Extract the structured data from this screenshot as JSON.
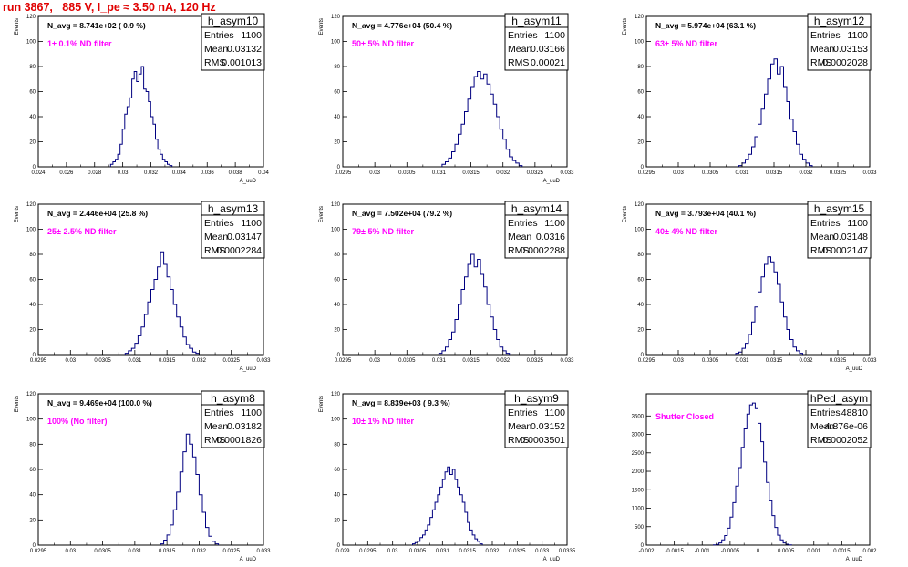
{
  "page": {
    "title": "run 3867,   885 V, I_pe ≈ 3.50 nA, 120 Hz"
  },
  "chart_data": [
    {
      "type": "bar",
      "name": "h_asym10",
      "stats": {
        "entries_label": "Entries",
        "entries": "1100",
        "mean_label": "Mean",
        "mean": "0.03132",
        "rms_label": "RMS",
        "rms": "0.001013"
      },
      "annotation": "N_avg = 8.741e+02 ( 0.9 %)",
      "note": "1± 0.1% ND filter",
      "ylabel": "Events",
      "xlabel": "A_uuD",
      "xlim": [
        0.0238,
        0.04
      ],
      "ylim": [
        0,
        120
      ],
      "xticks": [
        "0.024",
        "0.026",
        "0.028",
        "0.03",
        "0.032",
        "0.034",
        "0.036",
        "0.038",
        "0.04"
      ],
      "yticks": [
        "0",
        "20",
        "40",
        "60",
        "80",
        "100",
        "120"
      ],
      "bins": {
        "x0": 0.029,
        "width": 0.00017,
        "counts": [
          2,
          4,
          6,
          10,
          18,
          30,
          42,
          48,
          55,
          70,
          76,
          68,
          74,
          80,
          62,
          60,
          52,
          40,
          34,
          22,
          14,
          10,
          6,
          4,
          2,
          1
        ]
      }
    },
    {
      "type": "bar",
      "name": "h_asym11",
      "stats": {
        "entries_label": "Entries",
        "entries": "1100",
        "mean_label": "Mean",
        "mean": "0.03166",
        "rms_label": "RMS",
        "rms": "0.00021"
      },
      "annotation": "N_avg = 4.776e+04 (50.4 %)",
      "note": "50± 5% ND filter",
      "ylabel": "Events",
      "xlabel": "A_uuD",
      "xlim": [
        0.0295,
        0.033
      ],
      "ylim": [
        0,
        120
      ],
      "xticks": [
        "0.0295",
        "0.03",
        "0.0305",
        "0.031",
        "0.0315",
        "0.032",
        "0.0325",
        "0.033"
      ],
      "yticks": [
        "0",
        "20",
        "40",
        "60",
        "80",
        "100",
        "120"
      ],
      "bins": {
        "x0": 0.03105,
        "width": 5e-05,
        "counts": [
          2,
          4,
          7,
          12,
          18,
          26,
          34,
          44,
          54,
          64,
          72,
          76,
          70,
          74,
          66,
          58,
          50,
          40,
          30,
          22,
          14,
          8,
          5,
          3,
          1
        ]
      }
    },
    {
      "type": "bar",
      "name": "h_asym12",
      "stats": {
        "entries_label": "Entries",
        "entries": "1100",
        "mean_label": "Mean",
        "mean": "0.03153",
        "rms_label": "RMS",
        "rms": "0.0002028"
      },
      "annotation": "N_avg = 5.974e+04 (63.1 %)",
      "note": "63± 5% ND filter",
      "ylabel": "Events",
      "xlabel": "",
      "xlim": [
        0.0295,
        0.033
      ],
      "ylim": [
        0,
        120
      ],
      "xticks": [
        "0.0295",
        "0.03",
        "0.0305",
        "0.031",
        "0.0315",
        "0.032",
        "0.0325",
        "0.033"
      ],
      "yticks": [
        "0",
        "20",
        "40",
        "60",
        "80",
        "100",
        "120"
      ],
      "bins": {
        "x0": 0.03095,
        "width": 5e-05,
        "counts": [
          1,
          3,
          6,
          10,
          16,
          24,
          34,
          46,
          58,
          70,
          82,
          86,
          74,
          80,
          64,
          52,
          38,
          28,
          18,
          10,
          6,
          3,
          1
        ]
      }
    },
    {
      "type": "bar",
      "name": "h_asym13",
      "stats": {
        "entries_label": "Entries",
        "entries": "1100",
        "mean_label": "Mean",
        "mean": "0.03147",
        "rms_label": "RMS",
        "rms": "0.0002284"
      },
      "annotation": "N_avg = 2.446e+04 (25.8 %)",
      "note": "25± 2.5% ND filter",
      "ylabel": "Events",
      "xlabel": "A_uuD",
      "xlim": [
        0.0295,
        0.033
      ],
      "ylim": [
        0,
        120
      ],
      "xticks": [
        "0.0295",
        "0.03",
        "0.0305",
        "0.031",
        "0.0315",
        "0.032",
        "0.0325",
        "0.033"
      ],
      "yticks": [
        "0",
        "20",
        "40",
        "60",
        "80",
        "100",
        "120"
      ],
      "bins": {
        "x0": 0.03085,
        "width": 5e-05,
        "counts": [
          1,
          3,
          5,
          9,
          15,
          22,
          32,
          42,
          52,
          60,
          70,
          82,
          72,
          62,
          52,
          40,
          30,
          22,
          14,
          8,
          5,
          2,
          1
        ]
      }
    },
    {
      "type": "bar",
      "name": "h_asym14",
      "stats": {
        "entries_label": "Entries",
        "entries": "1100",
        "mean_label": "Mean",
        "mean": "0.0316",
        "rms_label": "RMS",
        "rms": "0.0002288"
      },
      "annotation": "N_avg = 7.502e+04 (79.2 %)",
      "note": "79± 5% ND filter",
      "ylabel": "Events",
      "xlabel": "",
      "xlim": [
        0.0295,
        0.033
      ],
      "ylim": [
        0,
        120
      ],
      "xticks": [
        "0.0295",
        "0.03",
        "0.0305",
        "0.031",
        "0.0315",
        "0.032",
        "0.0325",
        "0.033"
      ],
      "yticks": [
        "0",
        "20",
        "40",
        "60",
        "80",
        "100",
        "120"
      ],
      "bins": {
        "x0": 0.031,
        "width": 5e-05,
        "counts": [
          1,
          3,
          6,
          12,
          18,
          28,
          40,
          52,
          62,
          72,
          80,
          70,
          76,
          64,
          54,
          40,
          30,
          20,
          12,
          6,
          3,
          1
        ]
      }
    },
    {
      "type": "bar",
      "name": "h_asym15",
      "stats": {
        "entries_label": "Entries",
        "entries": "1100",
        "mean_label": "Mean",
        "mean": "0.03148",
        "rms_label": "RMS",
        "rms": "0.0002147"
      },
      "annotation": "N_avg = 3.793e+04 (40.1 %)",
      "note": "40± 4% ND filter",
      "ylabel": "Events",
      "xlabel": "A_uuD",
      "xlim": [
        0.0295,
        0.033
      ],
      "ylim": [
        0,
        120
      ],
      "xticks": [
        "0.0295",
        "0.03",
        "0.0305",
        "0.031",
        "0.0315",
        "0.032",
        "0.0325",
        "0.033"
      ],
      "yticks": [
        "0",
        "20",
        "40",
        "60",
        "80",
        "100",
        "120"
      ],
      "bins": {
        "x0": 0.0309,
        "width": 5e-05,
        "counts": [
          1,
          2,
          5,
          9,
          16,
          26,
          38,
          50,
          62,
          72,
          78,
          74,
          66,
          56,
          42,
          30,
          20,
          12,
          6,
          3,
          1
        ]
      }
    },
    {
      "type": "bar",
      "name": "h_asym8",
      "stats": {
        "entries_label": "Entries",
        "entries": "1100",
        "mean_label": "Mean",
        "mean": "0.03182",
        "rms_label": "RMS",
        "rms": "0.0001826"
      },
      "annotation": "N_avg = 9.469e+04 (100.0 %)",
      "note": "100% (No filter)",
      "ylabel": "Events",
      "xlabel": "A_uuD",
      "xlim": [
        0.0295,
        0.033
      ],
      "ylim": [
        0,
        120
      ],
      "xticks": [
        "0.0295",
        "0.03",
        "0.0305",
        "0.031",
        "0.0315",
        "0.032",
        "0.0325",
        "0.033"
      ],
      "yticks": [
        "0",
        "20",
        "40",
        "60",
        "80",
        "100",
        "120"
      ],
      "bins": {
        "x0": 0.0314,
        "width": 5e-05,
        "counts": [
          1,
          4,
          8,
          16,
          28,
          42,
          58,
          74,
          88,
          80,
          70,
          56,
          40,
          26,
          14,
          7,
          3,
          1
        ]
      }
    },
    {
      "type": "bar",
      "name": "h_asym9",
      "stats": {
        "entries_label": "Entries",
        "entries": "1100",
        "mean_label": "Mean",
        "mean": "0.03152",
        "rms_label": "RMS",
        "rms": "0.0003501"
      },
      "annotation": "N_avg = 8.839e+03 ( 9.3 %)",
      "note": "10± 1% ND filter",
      "ylabel": "Events",
      "xlabel": "A_uuD",
      "xlim": [
        0.029,
        0.0335
      ],
      "ylim": [
        0,
        120
      ],
      "xticks": [
        "0.029",
        "0.0295",
        "0.03",
        "0.0305",
        "0.031",
        "0.0315",
        "0.032",
        "0.0325",
        "0.033",
        "0.0335"
      ],
      "yticks": [
        "0",
        "20",
        "40",
        "60",
        "80",
        "100",
        "120"
      ],
      "bins": {
        "x0": 0.0304,
        "width": 5e-05,
        "counts": [
          1,
          2,
          3,
          6,
          8,
          12,
          16,
          22,
          28,
          34,
          40,
          46,
          52,
          58,
          62,
          56,
          60,
          52,
          46,
          40,
          34,
          26,
          18,
          12,
          8,
          5,
          3,
          1
        ]
      }
    },
    {
      "type": "bar",
      "name": "hPed_asym",
      "stats": {
        "entries_label": "Entries",
        "entries": "48810",
        "mean_label": "Mean",
        "mean": "-4.876e-06",
        "rms_label": "RMS",
        "rms": "0.0002052"
      },
      "annotation": "",
      "note": "Shutter Closed",
      "ylabel": "",
      "xlabel": "A_uuD",
      "xlim": [
        -0.002,
        0.002
      ],
      "ylim": [
        0,
        4100
      ],
      "xticks": [
        "-0.002",
        "-0.0015",
        "-0.001",
        "-0.0005",
        "0",
        "0.0005",
        "0.001",
        "0.0015",
        "0.002"
      ],
      "yticks": [
        "0",
        "500",
        "1000",
        "1500",
        "2000",
        "2500",
        "3000",
        "3500"
      ],
      "bins": {
        "x0": -0.0008,
        "width": 5e-05,
        "counts": [
          5,
          20,
          60,
          140,
          260,
          460,
          760,
          1150,
          1600,
          2100,
          2650,
          3150,
          3550,
          3800,
          3850,
          3700,
          3300,
          2800,
          2250,
          1700,
          1200,
          800,
          480,
          270,
          140,
          60,
          25,
          8
        ]
      }
    }
  ]
}
